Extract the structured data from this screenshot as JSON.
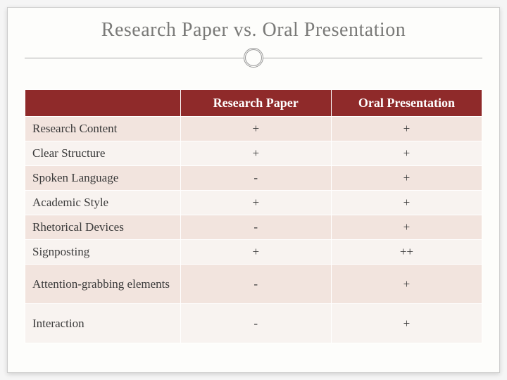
{
  "slide": {
    "title": "Research Paper vs. Oral Presentation",
    "background_color": "#fdfdfb",
    "title_color": "#7a7a78",
    "title_fontsize": 28
  },
  "table": {
    "type": "table",
    "header_bg": "#8f2a2a",
    "header_fg": "#ffffff",
    "row_odd_bg": "#f2e4de",
    "row_even_bg": "#f8f3f0",
    "cell_fontsize": 17,
    "columns": [
      "",
      "Research  Paper",
      "Oral Presentation"
    ],
    "rows": [
      {
        "label": "Research Content",
        "c1": "+",
        "c2": "+"
      },
      {
        "label": "Clear Structure",
        "c1": "+",
        "c2": "+"
      },
      {
        "label": "Spoken Language",
        "c1": "-",
        "c2": "+"
      },
      {
        "label": "Academic Style",
        "c1": "+",
        "c2": "+"
      },
      {
        "label": "Rhetorical  Devices",
        "c1": "-",
        "c2": "+"
      },
      {
        "label": "Signposting",
        "c1": "+",
        "c2": "++"
      },
      {
        "label": "Attention-grabbing elements",
        "c1": "-",
        "c2": "+"
      },
      {
        "label": "Interaction",
        "c1": "-",
        "c2": "+"
      }
    ],
    "tall_rows": [
      6,
      7
    ]
  }
}
